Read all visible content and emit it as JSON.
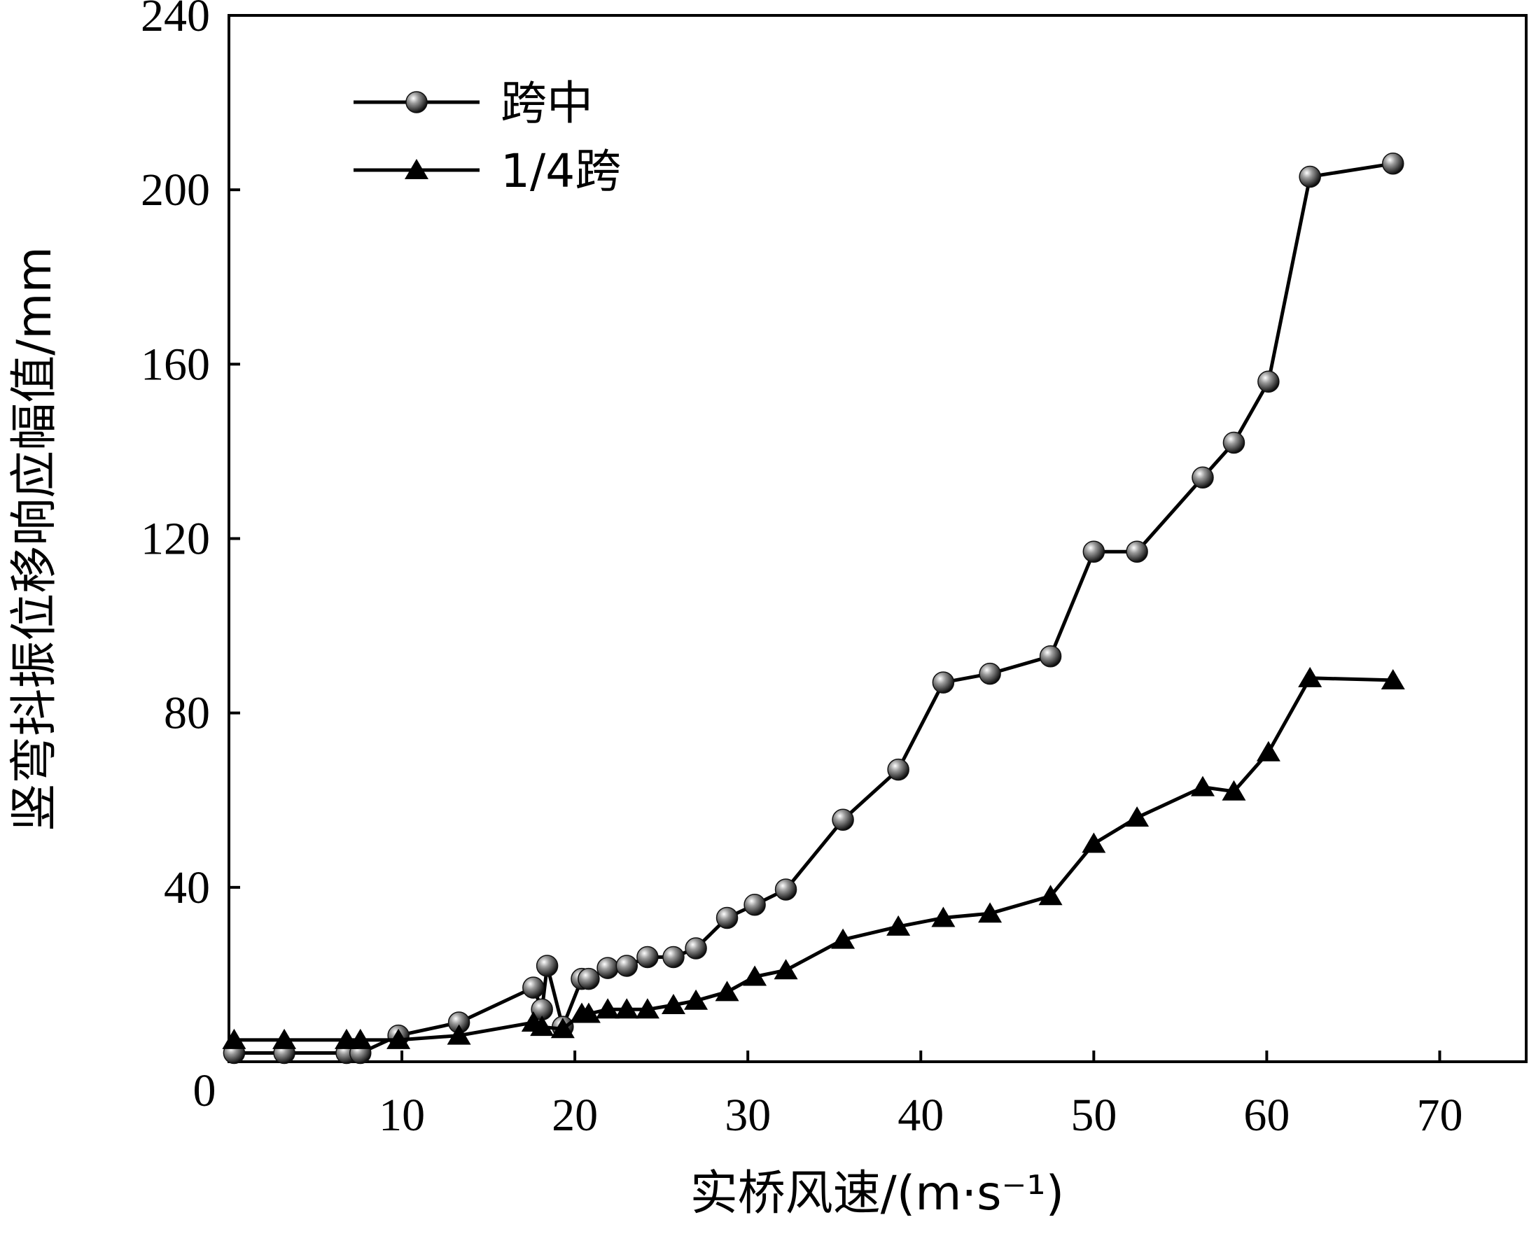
{
  "chart_data": {
    "type": "line",
    "title": "",
    "xlabel": "实桥风速/(m·s⁻¹)",
    "ylabel": "竖弯抖振位移响应幅值/mm",
    "xlim": [
      0,
      75
    ],
    "ylim": [
      0,
      240
    ],
    "x_ticks": [
      10,
      20,
      30,
      40,
      50,
      60,
      70
    ],
    "y_ticks": [
      40,
      80,
      120,
      160,
      200,
      240
    ],
    "origin_label": "0",
    "grid": false,
    "legend_position": "top-left",
    "series": [
      {
        "name": "跨中",
        "marker": "sphere",
        "points": [
          [
            0.3,
            2
          ],
          [
            3.2,
            2
          ],
          [
            6.8,
            2
          ],
          [
            7.6,
            2
          ],
          [
            9.8,
            6
          ],
          [
            13.3,
            9
          ],
          [
            17.6,
            17
          ],
          [
            18.1,
            12
          ],
          [
            18.4,
            22
          ],
          [
            19.3,
            8
          ],
          [
            20.4,
            19
          ],
          [
            20.8,
            19
          ],
          [
            21.9,
            21.5
          ],
          [
            23.0,
            22
          ],
          [
            24.2,
            24
          ],
          [
            25.7,
            24
          ],
          [
            27.0,
            26
          ],
          [
            28.8,
            33
          ],
          [
            30.4,
            36
          ],
          [
            32.2,
            39.5
          ],
          [
            35.5,
            55.5
          ],
          [
            38.7,
            67
          ],
          [
            41.3,
            87
          ],
          [
            44.0,
            89
          ],
          [
            47.5,
            93
          ],
          [
            50.0,
            117
          ],
          [
            52.5,
            117
          ],
          [
            56.3,
            134
          ],
          [
            58.1,
            142
          ],
          [
            60.1,
            156
          ],
          [
            62.5,
            203
          ],
          [
            67.3,
            206
          ]
        ]
      },
      {
        "name": "1/4跨",
        "marker": "triangle",
        "points": [
          [
            0.3,
            5
          ],
          [
            3.2,
            5
          ],
          [
            6.8,
            5
          ],
          [
            7.6,
            5
          ],
          [
            9.8,
            5
          ],
          [
            13.3,
            6
          ],
          [
            17.6,
            9
          ],
          [
            18.1,
            8
          ],
          [
            19.3,
            7.5
          ],
          [
            20.4,
            11
          ],
          [
            20.8,
            11
          ],
          [
            21.9,
            12
          ],
          [
            23.0,
            12
          ],
          [
            24.2,
            12
          ],
          [
            25.7,
            13
          ],
          [
            27.0,
            14
          ],
          [
            28.8,
            16
          ],
          [
            30.4,
            19.5
          ],
          [
            32.2,
            21
          ],
          [
            35.5,
            28
          ],
          [
            38.7,
            31
          ],
          [
            41.3,
            33
          ],
          [
            44.0,
            34
          ],
          [
            47.5,
            38
          ],
          [
            50.0,
            50
          ],
          [
            52.5,
            56
          ],
          [
            56.3,
            63
          ],
          [
            58.1,
            62
          ],
          [
            60.1,
            71
          ],
          [
            62.5,
            88
          ],
          [
            67.3,
            87.5
          ]
        ]
      }
    ]
  }
}
